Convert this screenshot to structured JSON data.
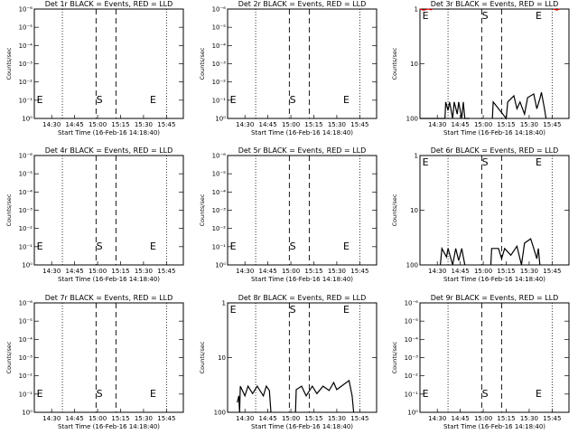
{
  "figure": {
    "xtick_labels": [
      "14:30",
      "14:45",
      "15:00",
      "15:15",
      "15:30",
      "15:45"
    ]
  },
  "chart_data": [
    {
      "type": "line",
      "title": "Det 1r BLACK = Events, RED = LLD",
      "xlabel": "Start Time (16-Feb-16 14:18:40)",
      "ylabel": "Counts/sec",
      "yscale": "log",
      "ylim": [
        1e-06,
        0.0001
      ],
      "ytick_labels": [
        "10⁻⁶",
        "10⁻⁵",
        "10⁻⁴",
        "10⁻³",
        "10⁻²",
        "10⁻¹",
        "10⁰"
      ],
      "markers": [
        "E",
        "S",
        "E"
      ],
      "series": []
    },
    {
      "type": "line",
      "title": "Det 2r BLACK = Events, RED = LLD",
      "xlabel": "Start Time (16-Feb-16 14:18:40)",
      "ylabel": "Counts/sec",
      "yscale": "log",
      "ylim": [
        1e-06,
        0.0001
      ],
      "ytick_labels": [
        "10⁻⁶",
        "10⁻⁵",
        "10⁻⁴",
        "10⁻³",
        "10⁻²",
        "10⁻¹",
        "10⁰"
      ],
      "markers": [
        "E",
        "S",
        "E"
      ],
      "series": []
    },
    {
      "type": "line",
      "title": "Det 3r BLACK = Events, RED = LLD",
      "xlabel": "Start Time (16-Feb-16 14:18:40)",
      "ylabel": "Counts/sec",
      "yscale": "log",
      "ylim": [
        1,
        100
      ],
      "ytick_labels": [
        "1",
        "10",
        "100"
      ],
      "markers": [
        "E",
        "S",
        "E"
      ],
      "series": [
        {
          "color": "#000000",
          "segments": [
            [
              [
                "14:18:40",
                1
              ],
              [
                "14:35:00",
                1
              ],
              [
                "14:35:30",
                2
              ],
              [
                "14:37:00",
                1.4
              ],
              [
                "14:38:00",
                2
              ],
              [
                "14:40:00",
                1
              ],
              [
                "14:41:00",
                2
              ],
              [
                "14:43:00",
                1.2
              ],
              [
                "14:44:00",
                2
              ],
              [
                "14:46:00",
                1
              ],
              [
                "14:47:00",
                2
              ],
              [
                "14:48:00",
                1
              ],
              [
                "14:51:00",
                1
              ]
            ],
            [
              [
                "15:06:00",
                1
              ],
              [
                "15:06:30",
                2
              ],
              [
                "15:15:00",
                1
              ],
              [
                "15:16:00",
                2
              ],
              [
                "15:20:00",
                2.6
              ],
              [
                "15:22:00",
                1.5
              ],
              [
                "15:24:00",
                2
              ],
              [
                "15:27:00",
                1.2
              ],
              [
                "15:29:00",
                2.4
              ],
              [
                "15:33:00",
                2.8
              ],
              [
                "15:35:00",
                1.5
              ],
              [
                "15:37:00",
                2.3
              ],
              [
                "15:38:00",
                3
              ],
              [
                "15:40:00",
                1.5
              ],
              [
                "15:41:00",
                1
              ]
            ]
          ]
        },
        {
          "color": "#e00000",
          "segments": [
            [
              [
                "14:18:40",
                100
              ],
              [
                "14:21:00",
                95
              ],
              [
                "14:24:00",
                100
              ],
              [
                "14:26:00",
                97
              ],
              [
                "14:27:00",
                100
              ]
            ],
            [
              [
                "15:46:00",
                100
              ],
              [
                "15:48:00",
                96
              ],
              [
                "15:50:00",
                100
              ]
            ]
          ]
        }
      ]
    },
    {
      "type": "line",
      "title": "Det 4r BLACK = Events, RED = LLD",
      "xlabel": "Start Time (16-Feb-16 14:18:40)",
      "ylabel": "Counts/sec",
      "yscale": "log",
      "ylim": [
        1e-06,
        0.0001
      ],
      "ytick_labels": [
        "10⁻⁶",
        "10⁻⁵",
        "10⁻⁴",
        "10⁻³",
        "10⁻²",
        "10⁻¹",
        "10⁰"
      ],
      "markers": [
        "E",
        "S",
        "E"
      ],
      "series": []
    },
    {
      "type": "line",
      "title": "Det 5r BLACK = Events, RED = LLD",
      "xlabel": "Start Time (16-Feb-16 14:18:40)",
      "ylabel": "Counts/sec",
      "yscale": "log",
      "ylim": [
        1e-06,
        0.0001
      ],
      "ytick_labels": [
        "10⁻⁶",
        "10⁻⁵",
        "10⁻⁴",
        "10⁻³",
        "10⁻²",
        "10⁻¹",
        "10⁰"
      ],
      "markers": [
        "E",
        "S",
        "E"
      ],
      "series": []
    },
    {
      "type": "line",
      "title": "Det 6r BLACK = Events, RED = LLD",
      "xlabel": "Start Time (16-Feb-16 14:18:40)",
      "ylabel": "Counts/sec",
      "yscale": "log",
      "ylim": [
        1,
        100
      ],
      "ytick_labels": [
        "1",
        "10",
        "100"
      ],
      "markers": [
        "E",
        "S",
        "E"
      ],
      "series": [
        {
          "color": "#000000",
          "segments": [
            [
              [
                "14:32:00",
                1
              ],
              [
                "14:33:00",
                2
              ],
              [
                "14:36:00",
                1.4
              ],
              [
                "14:37:00",
                2
              ],
              [
                "14:40:00",
                1
              ],
              [
                "14:42:00",
                2
              ],
              [
                "14:44:00",
                1.2
              ],
              [
                "14:46:00",
                2
              ],
              [
                "14:48:00",
                1
              ]
            ],
            [
              [
                "15:05:00",
                1
              ],
              [
                "15:05:30",
                2
              ],
              [
                "15:10:00",
                2
              ],
              [
                "15:12:00",
                1.3
              ],
              [
                "15:14:00",
                2
              ],
              [
                "15:18:00",
                1.5
              ],
              [
                "15:22:00",
                2.2
              ],
              [
                "15:25:00",
                1
              ],
              [
                "15:27:00",
                2.5
              ],
              [
                "15:31:00",
                3
              ],
              [
                "15:33:00",
                2
              ],
              [
                "15:35:00",
                1.3
              ],
              [
                "15:36:00",
                2
              ],
              [
                "15:37:00",
                1
              ]
            ]
          ]
        }
      ]
    },
    {
      "type": "line",
      "title": "Det 7r BLACK = Events, RED = LLD",
      "xlabel": "Start Time (16-Feb-16 14:18:40)",
      "ylabel": "Counts/sec",
      "yscale": "log",
      "ylim": [
        1e-06,
        0.0001
      ],
      "ytick_labels": [
        "10⁻⁶",
        "10⁻⁵",
        "10⁻⁴",
        "10⁻³",
        "10⁻²",
        "10⁻¹",
        "10⁰"
      ],
      "markers": [
        "E",
        "S",
        "E"
      ],
      "series": []
    },
    {
      "type": "line",
      "title": "Det 8r BLACK = Events, RED = LLD",
      "xlabel": "Start Time (16-Feb-16 14:18:40)",
      "ylabel": "Counts/sec",
      "yscale": "log",
      "ylim": [
        1,
        100
      ],
      "ytick_labels": [
        "1",
        "10",
        "100"
      ],
      "markers": [
        "E",
        "S",
        "E"
      ],
      "series": [
        {
          "color": "#000000",
          "segments": [
            [
              [
                "14:25:00",
                1.5
              ],
              [
                "14:26:00",
                2
              ],
              [
                "14:26:30",
                1
              ],
              [
                "14:27:00",
                3
              ],
              [
                "14:30:00",
                2
              ],
              [
                "14:32:00",
                3
              ],
              [
                "14:35:00",
                2.2
              ],
              [
                "14:38:00",
                3
              ],
              [
                "14:42:00",
                2
              ],
              [
                "14:44:00",
                3
              ],
              [
                "14:46:00",
                2.5
              ],
              [
                "14:47:00",
                1
              ]
            ],
            [
              [
                "15:03:00",
                1
              ],
              [
                "15:03:30",
                2.6
              ],
              [
                "15:07:00",
                3
              ],
              [
                "15:10:00",
                2
              ],
              [
                "15:14:00",
                3
              ],
              [
                "15:17:00",
                2.2
              ],
              [
                "15:21:00",
                3
              ],
              [
                "15:25:00",
                2.5
              ],
              [
                "15:28:00",
                3.5
              ],
              [
                "15:30:00",
                2.6
              ],
              [
                "15:35:00",
                3.3
              ],
              [
                "15:38:00",
                3.8
              ],
              [
                "15:40:00",
                2
              ],
              [
                "15:41:00",
                1
              ]
            ]
          ]
        }
      ]
    },
    {
      "type": "line",
      "title": "Det 9r BLACK = Events, RED = LLD",
      "xlabel": "Start Time (16-Feb-16 14:18:40)",
      "ylabel": "Counts/sec",
      "yscale": "log",
      "ylim": [
        1e-06,
        0.0001
      ],
      "ytick_labels": [
        "10⁻⁶",
        "10⁻⁵",
        "10⁻⁴",
        "10⁻³",
        "10⁻²",
        "10⁻¹",
        "10⁰"
      ],
      "markers": [
        "E",
        "S",
        "E"
      ],
      "series": []
    }
  ]
}
